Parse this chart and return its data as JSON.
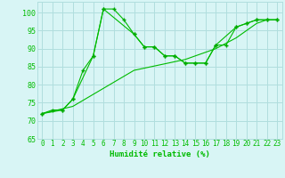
{
  "title": "",
  "xlabel": "Humidité relative (%)",
  "ylabel": "",
  "background_color": "#d8f5f5",
  "grid_color": "#b0dede",
  "line_color": "#00bb00",
  "marker_color": "#00aa00",
  "xlim": [
    -0.5,
    23.5
  ],
  "ylim": [
    65,
    103
  ],
  "yticks": [
    65,
    70,
    75,
    80,
    85,
    90,
    95,
    100
  ],
  "xticks": [
    0,
    1,
    2,
    3,
    4,
    5,
    6,
    7,
    8,
    9,
    10,
    11,
    12,
    13,
    14,
    15,
    16,
    17,
    18,
    19,
    20,
    21,
    22,
    23
  ],
  "line1_x": [
    0,
    1,
    2,
    3,
    4,
    5,
    6,
    7,
    8,
    9,
    10,
    11,
    12,
    13,
    14,
    15,
    16,
    17,
    18,
    19,
    20,
    21,
    22,
    23
  ],
  "line1_y": [
    72,
    73,
    73,
    76,
    84,
    88,
    101,
    101,
    98,
    94,
    90.5,
    90.5,
    88,
    88,
    86,
    86,
    86,
    91,
    91,
    96,
    97,
    98,
    98,
    98
  ],
  "line2_x": [
    0,
    3,
    9,
    14,
    17,
    19,
    21,
    22,
    23
  ],
  "line2_y": [
    72,
    74,
    84,
    87,
    90,
    93,
    97,
    98,
    98
  ],
  "line3_x": [
    0,
    2,
    3,
    5,
    6,
    9,
    10,
    11,
    12,
    13,
    14,
    15,
    16,
    17,
    19,
    20,
    21,
    22,
    23
  ],
  "line3_y": [
    72,
    73,
    76,
    88,
    101,
    94,
    90.5,
    90.5,
    88,
    88,
    86,
    86,
    86,
    91,
    96,
    97,
    98,
    98,
    98
  ]
}
